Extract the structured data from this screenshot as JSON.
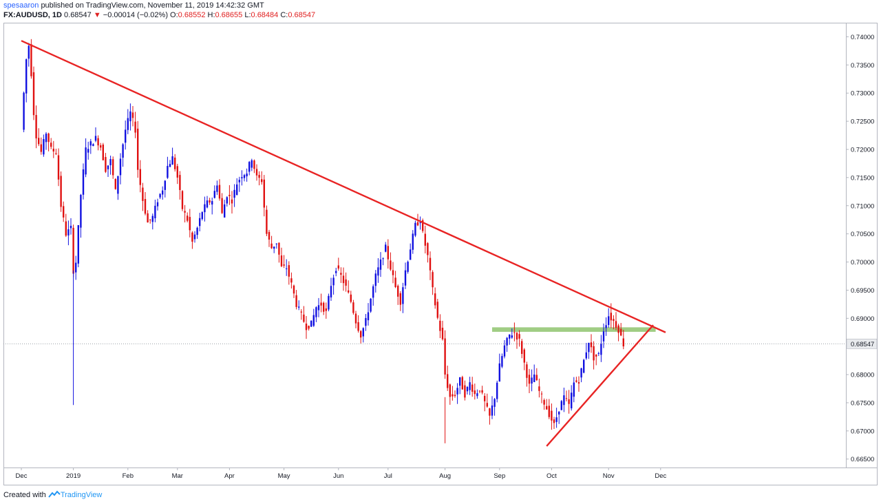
{
  "header": {
    "author": "spesaaron",
    "published_text": "published on TradingView.com, November 11, 2019 14:42:32 GMT",
    "symbol": "FX:AUDUSD, 1D",
    "last": "0.68547",
    "arrow": "▼",
    "change": "−0.00014 (−0.02%)",
    "o_label": "O:",
    "o_value": "0.68552",
    "h_label": "H:",
    "h_value": "0.68655",
    "l_label": "L:",
    "l_value": "0.68484",
    "c_label": "C:",
    "c_value": "0.68547"
  },
  "footer": {
    "created_with": "Created with",
    "brand": "TradingView"
  },
  "colors": {
    "up": "#1010e0",
    "down": "#e01010",
    "trendline": "#e82424",
    "zone": "#8fc46f",
    "price_line": "#9aa0a6"
  },
  "chart_data": {
    "type": "candlestick",
    "symbol": "FX:AUDUSD",
    "interval": "1D",
    "ylim": [
      0.6635,
      0.7425
    ],
    "y_ticks": [
      "0.74000",
      "0.73500",
      "0.73000",
      "0.72500",
      "0.72000",
      "0.71500",
      "0.71000",
      "0.70500",
      "0.70000",
      "0.69500",
      "0.69000",
      "0.68000",
      "0.67500",
      "0.67000",
      "0.66500"
    ],
    "x_ticks": [
      {
        "label": "Dec",
        "i": 0
      },
      {
        "label": "2019",
        "i": 21
      },
      {
        "label": "Feb",
        "i": 43
      },
      {
        "label": "Mar",
        "i": 63
      },
      {
        "label": "Apr",
        "i": 84
      },
      {
        "label": "May",
        "i": 106
      },
      {
        "label": "Jun",
        "i": 128
      },
      {
        "label": "Jul",
        "i": 148
      },
      {
        "label": "Aug",
        "i": 171
      },
      {
        "label": "Sep",
        "i": 193
      },
      {
        "label": "Oct",
        "i": 214
      },
      {
        "label": "Nov",
        "i": 237
      },
      {
        "label": "Dec",
        "i": 258
      }
    ],
    "last_price": {
      "value": 0.68547,
      "label": "0.68547"
    },
    "anchors": [
      [
        0,
        0.7235
      ],
      [
        1,
        0.73
      ],
      [
        2,
        0.736
      ],
      [
        3,
        0.7385
      ],
      [
        4,
        0.7335
      ],
      [
        5,
        0.7265
      ],
      [
        6,
        0.7225
      ],
      [
        8,
        0.7195
      ],
      [
        10,
        0.723
      ],
      [
        12,
        0.72
      ],
      [
        14,
        0.7195
      ],
      [
        16,
        0.71
      ],
      [
        18,
        0.705
      ],
      [
        20,
        0.706
      ],
      [
        21,
        0.6985
      ],
      [
        22,
        0.7
      ],
      [
        24,
        0.712
      ],
      [
        26,
        0.72
      ],
      [
        28,
        0.721
      ],
      [
        30,
        0.722
      ],
      [
        32,
        0.7205
      ],
      [
        34,
        0.7165
      ],
      [
        36,
        0.718
      ],
      [
        38,
        0.7125
      ],
      [
        40,
        0.7185
      ],
      [
        42,
        0.7235
      ],
      [
        44,
        0.7265
      ],
      [
        46,
        0.7235
      ],
      [
        47,
        0.7165
      ],
      [
        49,
        0.711
      ],
      [
        51,
        0.707
      ],
      [
        53,
        0.708
      ],
      [
        55,
        0.711
      ],
      [
        57,
        0.713
      ],
      [
        59,
        0.717
      ],
      [
        61,
        0.7185
      ],
      [
        63,
        0.715
      ],
      [
        65,
        0.7095
      ],
      [
        67,
        0.7075
      ],
      [
        69,
        0.7035
      ],
      [
        71,
        0.706
      ],
      [
        73,
        0.709
      ],
      [
        75,
        0.7105
      ],
      [
        77,
        0.711
      ],
      [
        79,
        0.714
      ],
      [
        81,
        0.7085
      ],
      [
        83,
        0.712
      ],
      [
        85,
        0.711
      ],
      [
        87,
        0.714
      ],
      [
        89,
        0.7155
      ],
      [
        91,
        0.716
      ],
      [
        93,
        0.7185
      ],
      [
        95,
        0.715
      ],
      [
        97,
        0.7145
      ],
      [
        99,
        0.705
      ],
      [
        101,
        0.7025
      ],
      [
        103,
        0.7035
      ],
      [
        105,
        0.699
      ],
      [
        107,
        0.699
      ],
      [
        109,
        0.696
      ],
      [
        111,
        0.6925
      ],
      [
        113,
        0.6905
      ],
      [
        115,
        0.6885
      ],
      [
        117,
        0.689
      ],
      [
        119,
        0.692
      ],
      [
        121,
        0.6925
      ],
      [
        123,
        0.691
      ],
      [
        125,
        0.696
      ],
      [
        127,
        0.699
      ],
      [
        129,
        0.6975
      ],
      [
        131,
        0.6955
      ],
      [
        133,
        0.693
      ],
      [
        135,
        0.6895
      ],
      [
        137,
        0.687
      ],
      [
        139,
        0.6895
      ],
      [
        141,
        0.6935
      ],
      [
        143,
        0.6975
      ],
      [
        145,
        0.7
      ],
      [
        147,
        0.7025
      ],
      [
        149,
        0.699
      ],
      [
        151,
        0.6955
      ],
      [
        153,
        0.693
      ],
      [
        155,
        0.6985
      ],
      [
        157,
        0.7025
      ],
      [
        159,
        0.7065
      ],
      [
        161,
        0.7075
      ],
      [
        162,
        0.705
      ],
      [
        164,
        0.701
      ],
      [
        166,
        0.695
      ],
      [
        168,
        0.69
      ],
      [
        170,
        0.686
      ],
      [
        171,
        0.68
      ],
      [
        173,
        0.676
      ],
      [
        175,
        0.6765
      ],
      [
        177,
        0.679
      ],
      [
        179,
        0.6765
      ],
      [
        181,
        0.6785
      ],
      [
        183,
        0.6765
      ],
      [
        185,
        0.6775
      ],
      [
        187,
        0.675
      ],
      [
        189,
        0.6725
      ],
      [
        191,
        0.676
      ],
      [
        193,
        0.6815
      ],
      [
        195,
        0.685
      ],
      [
        197,
        0.687
      ],
      [
        199,
        0.6875
      ],
      [
        201,
        0.686
      ],
      [
        203,
        0.682
      ],
      [
        205,
        0.678
      ],
      [
        207,
        0.68
      ],
      [
        209,
        0.677
      ],
      [
        211,
        0.675
      ],
      [
        213,
        0.673
      ],
      [
        215,
        0.671
      ],
      [
        217,
        0.674
      ],
      [
        219,
        0.676
      ],
      [
        221,
        0.6745
      ],
      [
        223,
        0.6785
      ],
      [
        225,
        0.679
      ],
      [
        227,
        0.6825
      ],
      [
        229,
        0.686
      ],
      [
        231,
        0.683
      ],
      [
        233,
        0.6835
      ],
      [
        235,
        0.688
      ],
      [
        237,
        0.6905
      ],
      [
        239,
        0.6895
      ],
      [
        241,
        0.688
      ],
      [
        243,
        0.6854
      ]
    ],
    "annotations": [
      {
        "type": "trendline",
        "name": "descending-trendline",
        "from": {
          "i": 0,
          "y": 0.7393
        },
        "to": {
          "i": 260,
          "y": 0.6875
        }
      },
      {
        "type": "trendline",
        "name": "ascending-trendline",
        "from": {
          "i": 212,
          "y": 0.6673
        },
        "to": {
          "i": 255,
          "y": 0.6888
        }
      },
      {
        "type": "zone",
        "name": "support-zone",
        "from_i": 190,
        "to_i": 256,
        "y_low": 0.6876,
        "y_high": 0.6884
      }
    ]
  }
}
